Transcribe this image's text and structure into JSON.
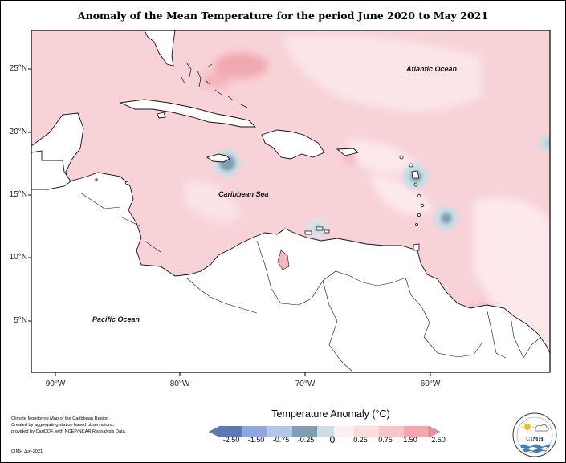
{
  "title": "Anomaly of the Mean Temperature for the period June 2020 to May 2021",
  "map": {
    "lat_labels": [
      "25°N",
      "20°N",
      "15°N",
      "10°N",
      "5°N"
    ],
    "lon_labels": [
      "90°W",
      "80°W",
      "70°W",
      "60°W"
    ],
    "labels": {
      "atlantic": "Atlantic Ocean",
      "caribbean": "Caribbean Sea",
      "pacific": "Pacific Ocean"
    }
  },
  "legend": {
    "title": "Temperature Anomaly (°C)",
    "labels": [
      "-2.50",
      "-1.50",
      "-0.75",
      "-0.25",
      "0",
      "0.25",
      "0.75",
      "1.50",
      "2.50"
    ],
    "colors": [
      "#5f78b4",
      "#8fa7e0",
      "#b4c4ea",
      "#7f9db3",
      "#c9dee5",
      "#fdeff1",
      "#fbdde0",
      "#f8c5c9",
      "#f4a8ae",
      "#ef9098"
    ]
  },
  "credit": {
    "lines": [
      "Climate Monitoring Map of the Caribbean Region.",
      "Created by aggregating station based observations,",
      "provided by CariCOF, with NCEP/NCAR Reanalysis Data."
    ],
    "date": "CIMH Jun-2021"
  },
  "logo": {
    "text": "CIMH"
  }
}
